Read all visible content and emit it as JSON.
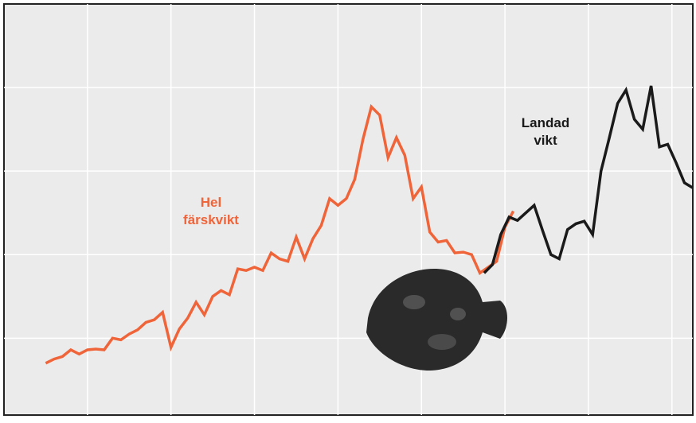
{
  "chart_data": {
    "type": "line",
    "xlim": [
      0,
      8.25
    ],
    "ylim": [
      0.08,
      5
    ],
    "xgrid": [
      1,
      2,
      3,
      4,
      5,
      6,
      7,
      8
    ],
    "ygrid": [
      1,
      2,
      3,
      4
    ],
    "grid": true,
    "series": [
      {
        "name": "Hel färskvikt",
        "color": "#f0643a",
        "x": [
          0.5,
          0.6,
          0.7,
          0.8,
          0.9,
          1.0,
          1.1,
          1.2,
          1.3,
          1.4,
          1.5,
          1.6,
          1.7,
          1.8,
          1.9,
          2.0,
          2.1,
          2.2,
          2.3,
          2.4,
          2.5,
          2.6,
          2.7,
          2.8,
          2.9,
          3.0,
          3.1,
          3.2,
          3.3,
          3.4,
          3.5,
          3.6,
          3.7,
          3.8,
          3.9,
          4.0,
          4.1,
          4.2,
          4.3,
          4.4,
          4.5,
          4.6,
          4.7,
          4.8,
          4.9,
          5.0,
          5.1,
          5.2,
          5.3,
          5.4,
          5.5,
          5.6,
          5.7,
          5.8,
          5.9,
          6.0,
          6.1
        ],
        "values": [
          0.7,
          0.75,
          0.78,
          0.86,
          0.81,
          0.86,
          0.87,
          0.86,
          1.0,
          0.98,
          1.05,
          1.1,
          1.19,
          1.22,
          1.31,
          0.89,
          1.11,
          1.24,
          1.43,
          1.28,
          1.5,
          1.57,
          1.52,
          1.83,
          1.81,
          1.85,
          1.81,
          2.02,
          1.95,
          1.92,
          2.21,
          1.95,
          2.19,
          2.35,
          2.67,
          2.59,
          2.67,
          2.9,
          3.38,
          3.77,
          3.67,
          3.16,
          3.4,
          3.19,
          2.67,
          2.81,
          2.27,
          2.15,
          2.17,
          2.02,
          2.03,
          2.0,
          1.78,
          1.85,
          1.92,
          2.33,
          2.52
        ]
      },
      {
        "name": "Landad vikt",
        "color": "#1a1a1a",
        "x": [
          5.75,
          5.85,
          5.95,
          6.05,
          6.15,
          6.25,
          6.35,
          6.45,
          6.55,
          6.65,
          6.75,
          6.85,
          6.95,
          7.05,
          7.15,
          7.25,
          7.35,
          7.45,
          7.55,
          7.65,
          7.75,
          7.85,
          7.95,
          8.05,
          8.15,
          8.25
        ],
        "values": [
          1.78,
          1.88,
          2.24,
          2.45,
          2.41,
          2.5,
          2.59,
          2.29,
          2.0,
          1.95,
          2.3,
          2.37,
          2.4,
          2.24,
          3.0,
          3.4,
          3.81,
          3.97,
          3.62,
          3.5,
          4.02,
          3.29,
          3.32,
          3.1,
          2.86,
          2.8
        ]
      }
    ]
  }
}
